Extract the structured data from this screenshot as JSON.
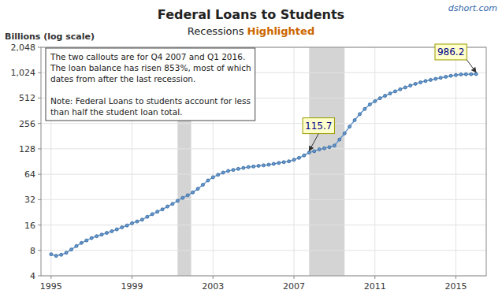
{
  "chart_data": {
    "type": "line",
    "title": "Federal Loans to Students",
    "subtitle": [
      "Recessions",
      "Highlighted"
    ],
    "y_label": "Billions (log scale)",
    "watermark": "dshort.com",
    "log": "y",
    "grid": true,
    "xlim": [
      1994.5,
      2016.5
    ],
    "xticks": [
      1995,
      1999,
      2003,
      2007,
      2011,
      2015
    ],
    "ylim": [
      4,
      2048
    ],
    "yticks": [
      4,
      8,
      16,
      32,
      64,
      128,
      256,
      512,
      {
        "value": 1024,
        "label": "1,024"
      },
      {
        "value": 2048,
        "label": "2,048"
      }
    ],
    "recession_bands": [
      [
        2001.25,
        2001.92
      ],
      [
        2007.75,
        2009.5
      ]
    ],
    "x": [
      1995.0,
      1995.25,
      1995.5,
      1995.75,
      1996.0,
      1996.25,
      1996.5,
      1996.75,
      1997.0,
      1997.25,
      1997.5,
      1997.75,
      1998.0,
      1998.25,
      1998.5,
      1998.75,
      1999.0,
      1999.25,
      1999.5,
      1999.75,
      2000.0,
      2000.25,
      2000.5,
      2000.75,
      2001.0,
      2001.25,
      2001.5,
      2001.75,
      2002.0,
      2002.25,
      2002.5,
      2002.75,
      2003.0,
      2003.25,
      2003.5,
      2003.75,
      2004.0,
      2004.25,
      2004.5,
      2004.75,
      2005.0,
      2005.25,
      2005.5,
      2005.75,
      2006.0,
      2006.25,
      2006.5,
      2006.75,
      2007.0,
      2007.25,
      2007.5,
      2007.75,
      2008.0,
      2008.25,
      2008.5,
      2008.75,
      2009.0,
      2009.25,
      2009.5,
      2009.75,
      2010.0,
      2010.25,
      2010.5,
      2010.75,
      2011.0,
      2011.25,
      2011.5,
      2011.75,
      2012.0,
      2012.25,
      2012.5,
      2012.75,
      2013.0,
      2013.25,
      2013.5,
      2013.75,
      2014.0,
      2014.25,
      2014.5,
      2014.75,
      2015.0,
      2015.25,
      2015.5,
      2015.75,
      2016.0
    ],
    "series": [
      {
        "color": "#6699cc",
        "marker": "circle",
        "values": [
          7.2,
          6.9,
          7.1,
          7.5,
          8.2,
          9.0,
          9.8,
          10.5,
          11.2,
          11.8,
          12.3,
          12.9,
          13.5,
          14.2,
          15.0,
          15.8,
          16.8,
          17.6,
          18.5,
          20.0,
          21.5,
          23.0,
          24.5,
          26.5,
          28.5,
          31.0,
          33.5,
          36.0,
          39.0,
          43.0,
          48.0,
          54.0,
          59.0,
          63.0,
          67.0,
          70.0,
          72.0,
          74.0,
          76.0,
          78.0,
          79.0,
          80.5,
          81.5,
          83.0,
          85.0,
          87.0,
          89.0,
          91.0,
          95.0,
          100.0,
          107.0,
          115.7,
          120.0,
          126.0,
          130.0,
          134.0,
          140.0,
          165.0,
          195.0,
          235.0,
          280.0,
          330.0,
          380.0,
          430.0,
          470.0,
          510.0,
          545.0,
          580.0,
          615.0,
          650.0,
          685.0,
          720.0,
          755.0,
          785.0,
          815.0,
          840.0,
          865.0,
          890.0,
          915.0,
          940.0,
          960.0,
          975.0,
          980.0,
          982.0,
          986.2
        ]
      }
    ],
    "annotations": [
      {
        "x": 2007.75,
        "y": 115.7,
        "text": "115.7"
      },
      {
        "x": 2016.0,
        "y": 986.2,
        "text": "986.2"
      }
    ],
    "note": "The two callouts are for Q4 2007 and Q1 2016.\nThe loan balance has risen 853%, most of which\ndates from after the last recession.\n\nNote:  Federal Loans to students account for less\nthan half the student loan total."
  }
}
